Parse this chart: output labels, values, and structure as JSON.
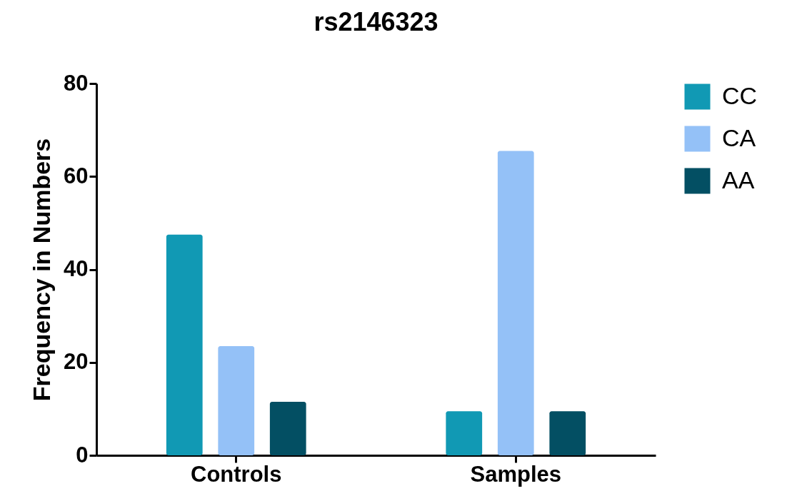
{
  "chart_data": {
    "type": "bar",
    "title": "rs2146323",
    "ylabel": "Frequency in Numbers",
    "categories": [
      "Controls",
      "Samples"
    ],
    "series": [
      {
        "name": "CC",
        "color": "#1199b4",
        "values": [
          47.5,
          9.5
        ]
      },
      {
        "name": "CA",
        "color": "#94c1f7",
        "values": [
          23.5,
          65.5
        ]
      },
      {
        "name": "AA",
        "color": "#034f63",
        "values": [
          11.5,
          9.5
        ]
      }
    ],
    "ylim": [
      0,
      80
    ],
    "yticks": [
      0,
      20,
      40,
      60,
      80
    ],
    "grid": false,
    "legend": "top right"
  }
}
